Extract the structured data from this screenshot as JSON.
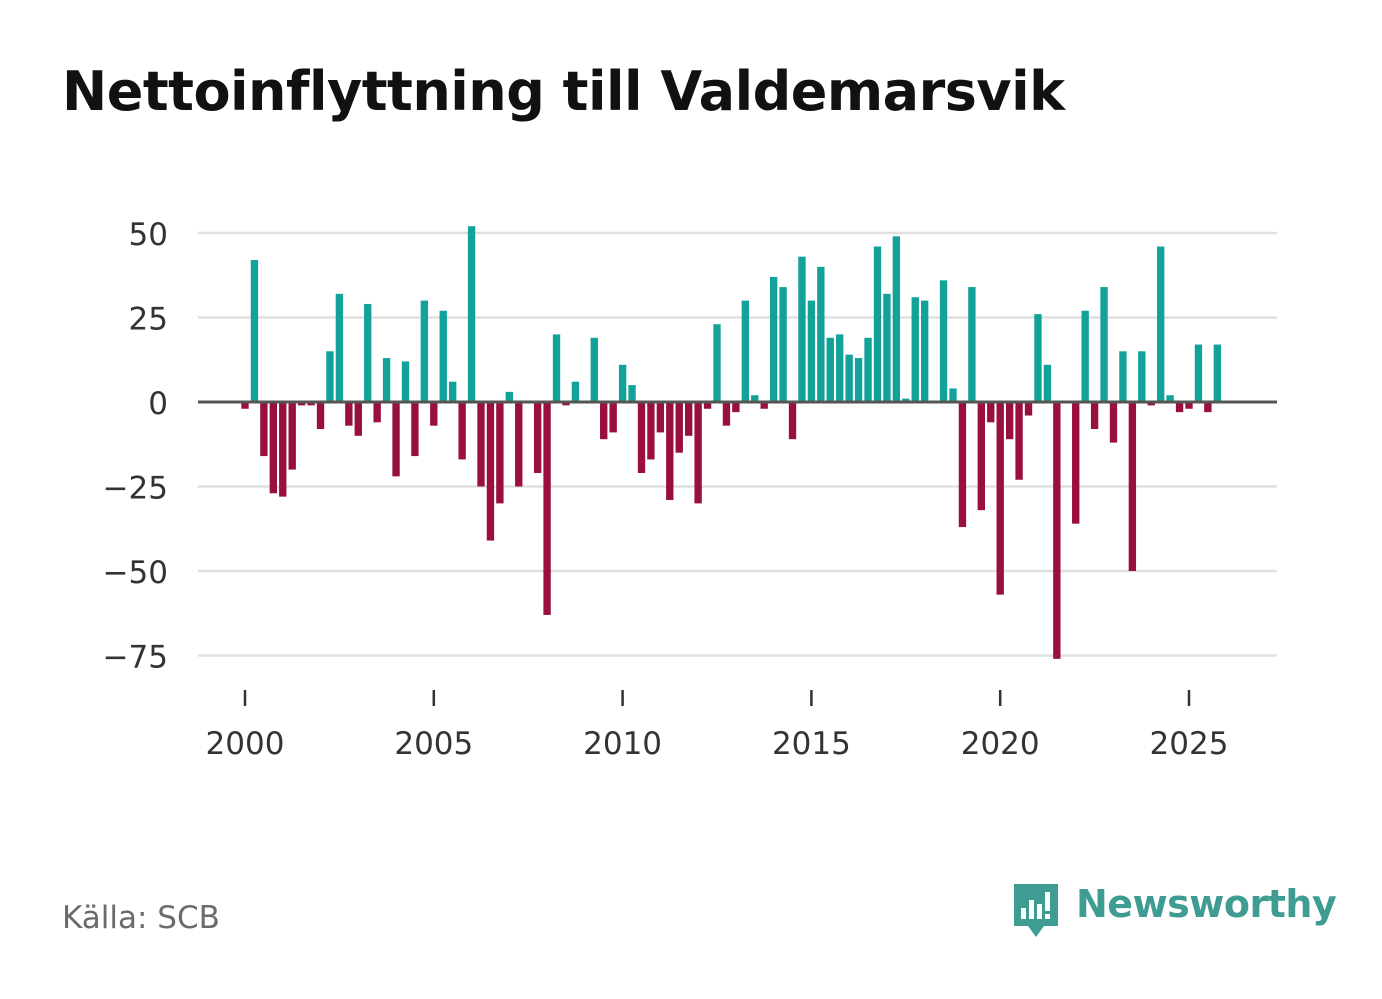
{
  "title": "Nettoinflyttning till Valdemarsvik",
  "source": "Källa: SCB",
  "brand": {
    "name": "Newsworthy",
    "logo_icon": "bar-chart-speech-bubble-icon"
  },
  "colors": {
    "positive": "#12a29a",
    "negative": "#990f3d",
    "grid": "#e0e0e0",
    "zero_line": "#555555",
    "text": "#333333",
    "brand": "#3e9c92"
  },
  "chart_data": {
    "type": "bar",
    "title": "Nettoinflyttning till Valdemarsvik",
    "xlabel": "",
    "ylabel": "",
    "frequency": "quarterly",
    "start": "2000 Q1",
    "x_ticks": [
      2000,
      2005,
      2010,
      2015,
      2020,
      2025
    ],
    "x_tick_labels": [
      "2000",
      "2005",
      "2010",
      "2015",
      "2020",
      "2025"
    ],
    "y_ticks": [
      50,
      25,
      0,
      -25,
      -50,
      -75
    ],
    "y_tick_labels": [
      "50",
      "25",
      "0",
      "−25",
      "−50",
      "−75"
    ],
    "xlim": [
      1999.25,
      2027.3
    ],
    "ylim": [
      -80,
      55
    ],
    "grid": true,
    "values": [
      -2,
      42,
      -16,
      -27,
      -28,
      -20,
      -1,
      -1,
      -8,
      15,
      32,
      -7,
      -10,
      29,
      -6,
      13,
      -22,
      12,
      -16,
      30,
      -7,
      27,
      6,
      -17,
      52,
      -25,
      -41,
      -30,
      3,
      -25,
      0,
      -21,
      -63,
      20,
      -1,
      6,
      0,
      19,
      -11,
      -9,
      11,
      5,
      -21,
      -17,
      -9,
      -29,
      -15,
      -10,
      -30,
      -2,
      23,
      -7,
      -3,
      30,
      2,
      -2,
      37,
      34,
      -11,
      43,
      30,
      40,
      19,
      20,
      14,
      13,
      19,
      46,
      32,
      49,
      1,
      31,
      30,
      0,
      36,
      4,
      -37,
      34,
      -32,
      -6,
      -57,
      -11,
      -23,
      -4,
      26,
      11,
      -76,
      0,
      -36,
      27,
      -8,
      34,
      -12,
      15,
      -50,
      15,
      -1,
      46,
      2,
      -3,
      -2,
      17,
      -3,
      17
    ]
  }
}
